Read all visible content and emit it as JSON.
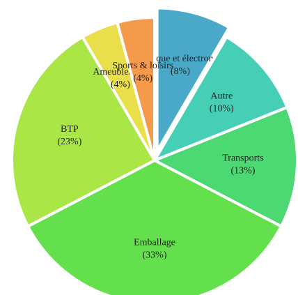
{
  "chart_data": {
    "type": "pie",
    "categories": [
      "Electrique et électronique",
      "Autre",
      "Transports",
      "Emballage",
      "BTP",
      "Ameublement",
      "Sports & loisirs"
    ],
    "values": [
      8,
      10,
      13,
      33,
      23,
      4,
      4
    ],
    "value_labels": [
      "(8%)",
      "(10%)",
      "(13%)",
      "(33%)",
      "(23%)",
      "(4%)",
      "(4%)"
    ],
    "colors": [
      "#4aa9c9",
      "#47cfb6",
      "#4cd872",
      "#63e04b",
      "#a9e646",
      "#e9df4b",
      "#f5994b"
    ],
    "exploded": [
      "Electrique et électronique"
    ]
  }
}
